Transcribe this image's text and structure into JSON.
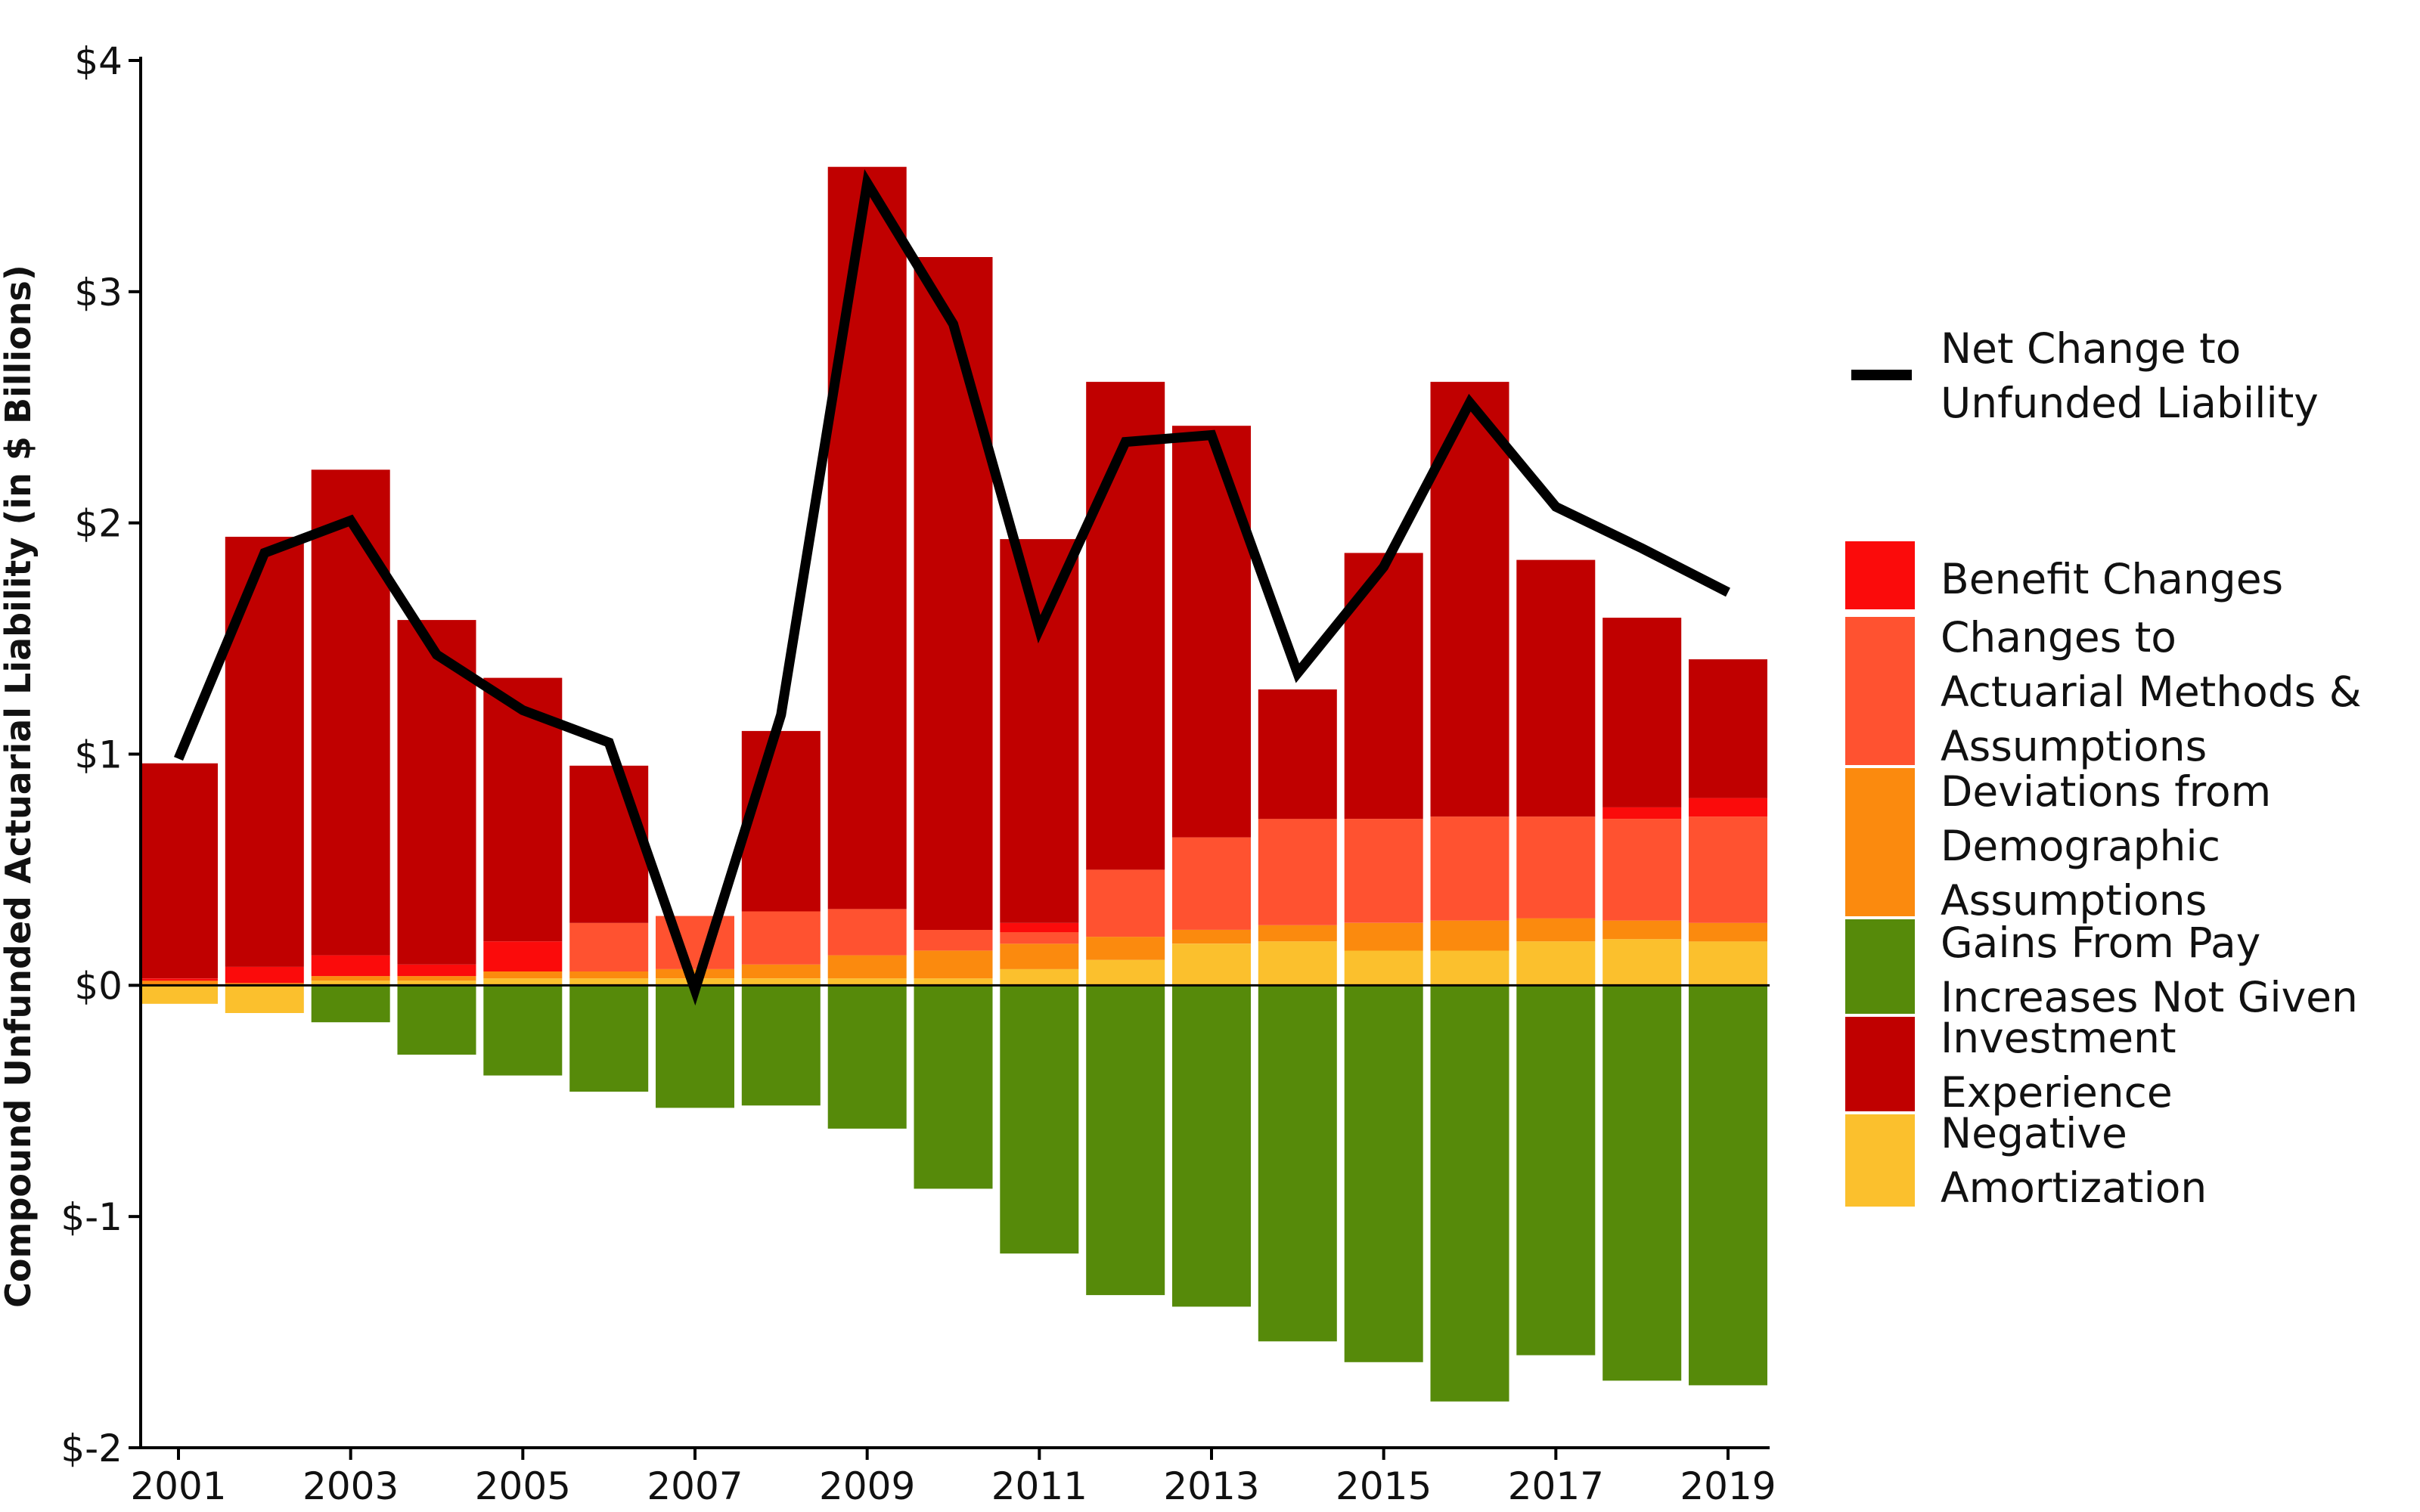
{
  "chart_data": {
    "type": "bar",
    "stacked": true,
    "title": "",
    "xlabel": "",
    "ylabel": "Compound Unfunded Actuarial Liability (in $ Billions)",
    "ylim": [
      -2,
      4
    ],
    "y_ticks": [
      -2,
      -1,
      0,
      1,
      2,
      3,
      4
    ],
    "y_tick_labels": [
      "$-2",
      "$-1",
      "$0",
      "$1",
      "$2",
      "$3",
      "$4"
    ],
    "categories": [
      2001,
      2002,
      2003,
      2004,
      2005,
      2006,
      2007,
      2008,
      2009,
      2010,
      2011,
      2012,
      2013,
      2014,
      2015,
      2016,
      2017,
      2018,
      2019
    ],
    "x_tick_labels": [
      "2001",
      "2003",
      "2005",
      "2007",
      "2009",
      "2011",
      "2013",
      "2015",
      "2017",
      "2019"
    ],
    "grid": false,
    "legend_position": "right",
    "series": [
      {
        "name": "Negative Amortization",
        "color": "#FBC02D",
        "values": [
          -0.08,
          -0.12,
          0.02,
          0.02,
          0.03,
          0.03,
          0.03,
          0.03,
          0.03,
          0.03,
          0.07,
          0.11,
          0.18,
          0.19,
          0.15,
          0.15,
          0.19,
          0.2,
          0.19
        ]
      },
      {
        "name": "Gains From Pay Increases Not Given",
        "color": "#568A0A",
        "values": [
          0,
          0,
          -0.16,
          -0.3,
          -0.39,
          -0.46,
          -0.53,
          -0.52,
          -0.62,
          -0.88,
          -1.16,
          -1.34,
          -1.39,
          -1.54,
          -1.63,
          -1.8,
          -1.6,
          -1.71,
          -1.73
        ]
      },
      {
        "name": "Deviations from Demographic Assumptions",
        "color": "#FB8A0E",
        "values": [
          0.02,
          0.01,
          0.02,
          0.02,
          0.03,
          0.03,
          0.04,
          0.06,
          0.1,
          0.12,
          0.11,
          0.1,
          0.06,
          0.07,
          0.12,
          0.13,
          0.1,
          0.08,
          0.08
        ]
      },
      {
        "name": "Changes to Actuarial Methods & Assumptions",
        "color": "#FF5230",
        "values": [
          0,
          0,
          0,
          0,
          0,
          0.21,
          0.23,
          0.23,
          0.2,
          0.09,
          0.05,
          0.29,
          0.4,
          0.46,
          0.45,
          0.45,
          0.44,
          0.44,
          0.46
        ]
      },
      {
        "name": "Benefit Changes",
        "color": "#FB0B0B",
        "values": [
          0.01,
          0.07,
          0.09,
          0.05,
          0.13,
          0,
          0,
          0,
          0,
          0,
          0.04,
          0,
          0,
          0,
          0,
          0,
          0,
          0.05,
          0.08
        ]
      },
      {
        "name": "Investment Experience",
        "color": "#C00000",
        "values": [
          0.93,
          1.86,
          2.1,
          1.49,
          1.14,
          0.68,
          0,
          0.78,
          3.21,
          2.91,
          1.66,
          2.11,
          1.78,
          0.56,
          1.15,
          1.88,
          1.11,
          0.82,
          0.6
        ]
      }
    ],
    "line": {
      "name": "Net Change to Unfunded Liability",
      "color": "#000000",
      "values": [
        0.98,
        1.87,
        2.01,
        1.43,
        1.19,
        1.05,
        -0.02,
        1.17,
        3.47,
        2.86,
        1.54,
        2.35,
        2.38,
        1.35,
        1.81,
        2.52,
        2.07,
        1.89,
        1.7
      ]
    },
    "legend_order": [
      "Benefit Changes",
      "Changes to Actuarial Methods & Assumptions",
      "Deviations from Demographic Assumptions",
      "Gains From Pay Increases Not Given",
      "Investment Experience",
      "Negative Amortization"
    ]
  },
  "legend": {
    "line_label_lines": [
      "Net Change to",
      "Unfunded Liability"
    ],
    "items": [
      {
        "series": "Benefit Changes",
        "color": "#FB0B0B",
        "lines": [
          "Benefit Changes"
        ]
      },
      {
        "series": "Changes to Actuarial Methods & Assumptions",
        "color": "#FF5230",
        "lines": [
          "Changes to",
          "Actuarial Methods &",
          "Assumptions"
        ]
      },
      {
        "series": "Deviations from Demographic Assumptions",
        "color": "#FB8A0E",
        "lines": [
          "Deviations from",
          "Demographic",
          "Assumptions"
        ]
      },
      {
        "series": "Gains From Pay Increases Not Given",
        "color": "#568A0A",
        "lines": [
          "Gains From Pay",
          "Increases Not Given"
        ]
      },
      {
        "series": "Investment Experience",
        "color": "#C00000",
        "lines": [
          "Investment",
          "Experience"
        ]
      },
      {
        "series": "Negative Amortization",
        "color": "#FBC02D",
        "lines": [
          "Negative",
          "Amortization"
        ]
      }
    ]
  }
}
